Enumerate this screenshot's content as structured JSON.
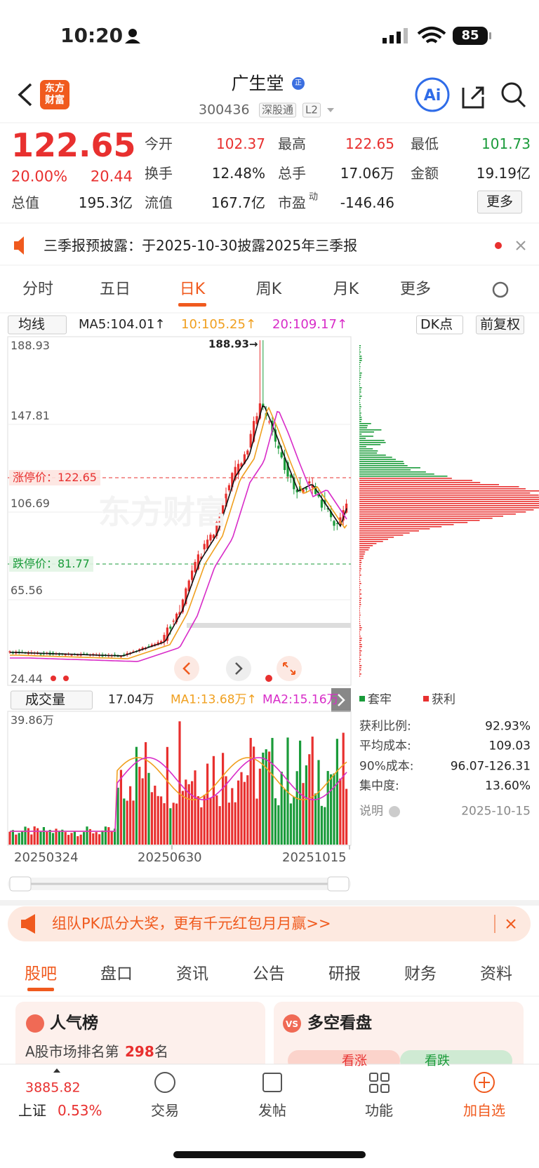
{
  "status": {
    "time": "10:20",
    "battery": "85"
  },
  "header": {
    "logo": "东方财富",
    "title": "广生堂",
    "badge": "正",
    "code": "300436",
    "tags": [
      "深股通",
      "L2"
    ]
  },
  "quote": {
    "price": "122.65",
    "change_pct": "20.00%",
    "change": "20.44",
    "fields": [
      {
        "label": "今开",
        "value": "102.37"
      },
      {
        "label": "最高",
        "value": "122.65"
      },
      {
        "label": "最低",
        "value": "101.73"
      },
      {
        "label": "换手",
        "value": "12.48%"
      },
      {
        "label": "总手",
        "value": "17.06万"
      },
      {
        "label": "金额",
        "value": "19.19亿"
      },
      {
        "label": "总值",
        "value": "195.3亿"
      },
      {
        "label": "流值",
        "value": "167.7亿"
      },
      {
        "label": "市盈",
        "sup": "动",
        "value": "-146.46"
      }
    ],
    "more": "更多"
  },
  "notice": "三季报预披露：于2025-10-30披露2025年三季报",
  "chart_tabs": [
    "分时",
    "五日",
    "日K",
    "周K",
    "月K",
    "更多"
  ],
  "kline": {
    "indicator": "均线",
    "ma5": "MA5:104.01↑",
    "ma10": "10:105.25↑",
    "ma20": "20:109.17↑",
    "dk": "DK点",
    "adjust": "前复权",
    "price_labels": [
      "188.93",
      "147.81",
      "106.69",
      "65.56",
      "24.44"
    ],
    "max_marker": "188.93→",
    "limit_up": "涨停价：122.65",
    "limit_down": "跌停价：81.77",
    "watermark": "东方财富"
  },
  "volume": {
    "indicator": "成交量",
    "current": "17.04万",
    "ma1": "MA1:13.68万↑",
    "ma2": "MA2:15.16万",
    "max": "39.86万",
    "dates": [
      "20250324",
      "20250630",
      "20251015"
    ]
  },
  "chips": {
    "legend": [
      "套牢",
      "获利"
    ],
    "rows": [
      {
        "label": "获利比例:",
        "value": "92.93%"
      },
      {
        "label": "平均成本:",
        "value": "109.03"
      },
      {
        "label": "90%成本:",
        "value": "96.07-126.31"
      },
      {
        "label": "集中度:",
        "value": "13.60%"
      }
    ],
    "note": "说明",
    "date": "2025-10-15"
  },
  "banner": "组队PK瓜分大奖，更有千元红包月月赢>>",
  "section_tabs": [
    "股吧",
    "盘口",
    "资讯",
    "公告",
    "研报",
    "财务",
    "资料"
  ],
  "cards": {
    "popular": {
      "title": "人气榜",
      "rank_prefix": "A股市场排名第",
      "rank": "298",
      "rank_suffix": "名"
    },
    "sentiment": {
      "title": "多空看盘",
      "bull": "看涨",
      "bear": "看跌"
    }
  },
  "nav": {
    "index_value": "3885.82",
    "index_name": "上证",
    "index_change": "0.53%",
    "items": [
      "交易",
      "发帖",
      "功能",
      "加自选"
    ]
  }
}
